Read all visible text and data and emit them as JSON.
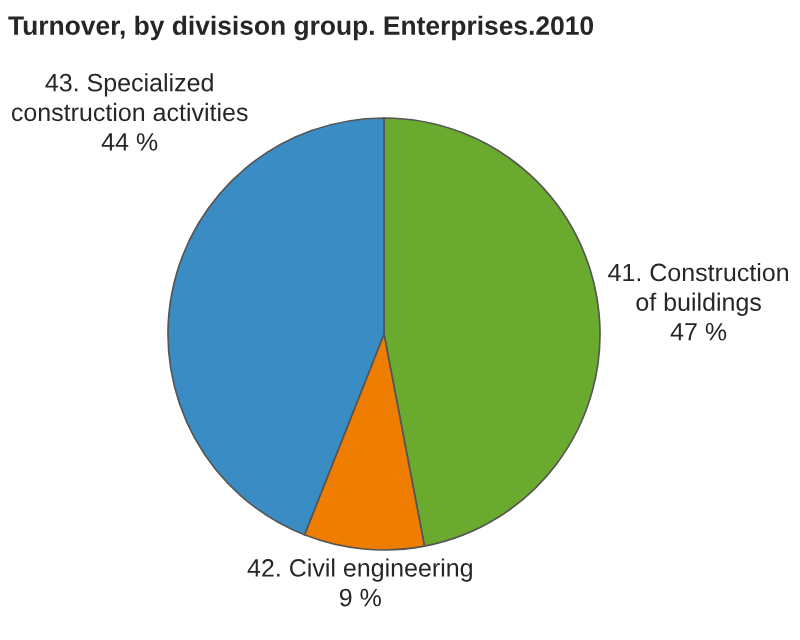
{
  "chart_data": {
    "type": "pie",
    "title": "Turnover, by divisison group. Enterprises.2010",
    "categories": [
      "41. Construction\nof buildings",
      "42. Civil engineering",
      "43. Specialized\nconstruction activities"
    ],
    "values": [
      47,
      9,
      44
    ],
    "colors": [
      "#6aaa2f",
      "#ef7d00",
      "#3a8cc4"
    ],
    "value_labels": [
      "47 %",
      "9 %",
      "44 %"
    ]
  }
}
